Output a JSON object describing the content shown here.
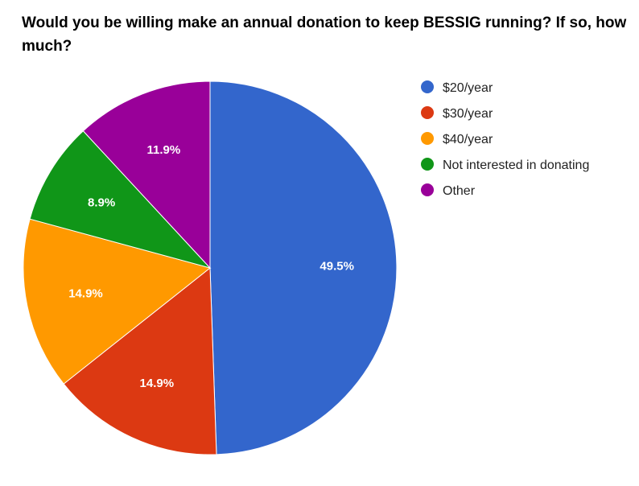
{
  "chart_data": {
    "type": "pie",
    "title": "Would you be willing make an annual donation to keep BESSIG running? If so, how much?",
    "legend_position": "right",
    "slices": [
      {
        "label": "$20/year",
        "value": 49.5,
        "value_label": "49.5%",
        "color": "#3366cc"
      },
      {
        "label": "$30/year",
        "value": 14.9,
        "value_label": "14.9%",
        "color": "#dc3912"
      },
      {
        "label": "$40/year",
        "value": 14.9,
        "value_label": "14.9%",
        "color": "#ff9900"
      },
      {
        "label": "Not interested in donating",
        "value": 8.9,
        "value_label": "8.9%",
        "color": "#109618"
      },
      {
        "label": "Other",
        "value": 11.9,
        "value_label": "11.9%",
        "color": "#990099"
      }
    ]
  }
}
